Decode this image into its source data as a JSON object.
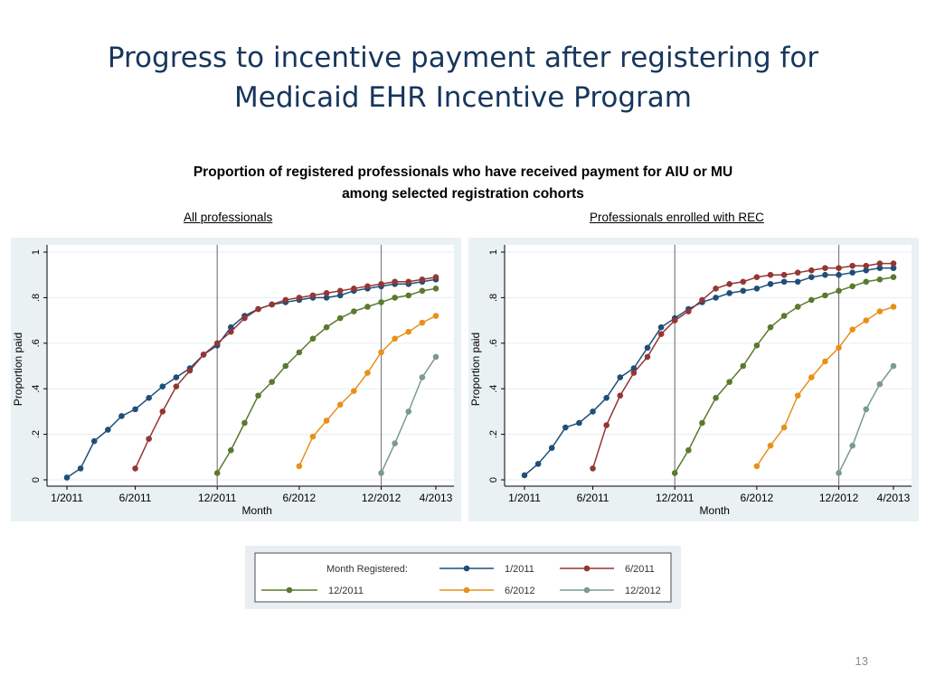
{
  "slide": {
    "title_line1": "Progress to incentive payment after registering for",
    "title_line2": "Medicaid EHR Incentive Program",
    "subtitle_line1": "Proportion of registered professionals who have received payment for AIU or MU",
    "subtitle_line2": "among selected registration cohorts",
    "page_number": "13"
  },
  "colors": {
    "plot_bg": "#eaf1f3",
    "grid": "#ffffff",
    "vline": "#7f7f7f",
    "1/2011": "#1f4e79",
    "6/2011": "#943634",
    "12/2011": "#5a7a2e",
    "6/2012": "#e8901a",
    "12/2012": "#7a9a92"
  },
  "legend": {
    "title": "Month Registered:",
    "items": [
      {
        "label": "1/2011",
        "color": "#1f4e79"
      },
      {
        "label": "6/2011",
        "color": "#943634"
      },
      {
        "label": "12/2011",
        "color": "#5a7a2e"
      },
      {
        "label": "6/2012",
        "color": "#e8901a"
      },
      {
        "label": "12/2012",
        "color": "#7a9a92"
      }
    ]
  },
  "chart_data": [
    {
      "type": "line",
      "panel_label": "All professionals",
      "xlabel": "Month",
      "ylabel": "Proportion paid",
      "xticks": [
        "1/2011",
        "6/2011",
        "12/2011",
        "6/2012",
        "12/2012",
        "4/2013"
      ],
      "yticks": [
        "0",
        ".2",
        ".4",
        ".6",
        ".8",
        "1"
      ],
      "xlim": [
        "1/2011",
        "4/2013"
      ],
      "ylim": [
        0,
        1
      ],
      "vertical_lines": [
        "12/2011",
        "12/2012"
      ],
      "series": [
        {
          "name": "1/2011",
          "start": "1/2011",
          "values": [
            0.01,
            0.05,
            0.17,
            0.22,
            0.28,
            0.31,
            0.36,
            0.41,
            0.45,
            0.49,
            0.55,
            0.59,
            0.67,
            0.72,
            0.75,
            0.77,
            0.78,
            0.79,
            0.8,
            0.8,
            0.81,
            0.83,
            0.84,
            0.85,
            0.86,
            0.86,
            0.87,
            0.88
          ]
        },
        {
          "name": "6/2011",
          "start": "6/2011",
          "values": [
            0.05,
            0.18,
            0.3,
            0.41,
            0.48,
            0.55,
            0.6,
            0.65,
            0.71,
            0.75,
            0.77,
            0.79,
            0.8,
            0.81,
            0.82,
            0.83,
            0.84,
            0.85,
            0.86,
            0.87,
            0.87,
            0.88,
            0.89
          ]
        },
        {
          "name": "12/2011",
          "start": "12/2011",
          "values": [
            0.03,
            0.13,
            0.25,
            0.37,
            0.43,
            0.5,
            0.56,
            0.62,
            0.67,
            0.71,
            0.74,
            0.76,
            0.78,
            0.8,
            0.81,
            0.83,
            0.84
          ]
        },
        {
          "name": "6/2012",
          "start": "6/2012",
          "values": [
            0.06,
            0.19,
            0.26,
            0.33,
            0.39,
            0.47,
            0.56,
            0.62,
            0.65,
            0.69,
            0.72
          ]
        },
        {
          "name": "12/2012",
          "start": "12/2012",
          "values": [
            0.03,
            0.16,
            0.3,
            0.45,
            0.54
          ]
        }
      ]
    },
    {
      "type": "line",
      "panel_label": "Professionals enrolled with REC",
      "xlabel": "Month",
      "ylabel": "Proportion paid",
      "xticks": [
        "1/2011",
        "6/2011",
        "12/2011",
        "6/2012",
        "12/2012",
        "4/2013"
      ],
      "yticks": [
        "0",
        ".2",
        ".4",
        ".6",
        ".8",
        "1"
      ],
      "xlim": [
        "1/2011",
        "4/2013"
      ],
      "ylim": [
        0,
        1
      ],
      "vertical_lines": [
        "12/2011",
        "12/2012"
      ],
      "series": [
        {
          "name": "1/2011",
          "start": "1/2011",
          "values": [
            0.02,
            0.07,
            0.14,
            0.23,
            0.25,
            0.3,
            0.36,
            0.45,
            0.49,
            0.58,
            0.67,
            0.71,
            0.75,
            0.78,
            0.8,
            0.82,
            0.83,
            0.84,
            0.86,
            0.87,
            0.87,
            0.89,
            0.9,
            0.9,
            0.91,
            0.92,
            0.93,
            0.93
          ]
        },
        {
          "name": "6/2011",
          "start": "6/2011",
          "values": [
            0.05,
            0.24,
            0.37,
            0.47,
            0.54,
            0.64,
            0.7,
            0.74,
            0.79,
            0.84,
            0.86,
            0.87,
            0.89,
            0.9,
            0.9,
            0.91,
            0.92,
            0.93,
            0.93,
            0.94,
            0.94,
            0.95,
            0.95
          ]
        },
        {
          "name": "12/2011",
          "start": "12/2011",
          "values": [
            0.03,
            0.13,
            0.25,
            0.36,
            0.43,
            0.5,
            0.59,
            0.67,
            0.72,
            0.76,
            0.79,
            0.81,
            0.83,
            0.85,
            0.87,
            0.88,
            0.89
          ]
        },
        {
          "name": "6/2012",
          "start": "6/2012",
          "values": [
            0.06,
            0.15,
            0.23,
            0.37,
            0.45,
            0.52,
            0.58,
            0.66,
            0.7,
            0.74,
            0.76
          ]
        },
        {
          "name": "12/2012",
          "start": "12/2012",
          "values": [
            0.03,
            0.15,
            0.31,
            0.42,
            0.5
          ]
        }
      ]
    }
  ]
}
